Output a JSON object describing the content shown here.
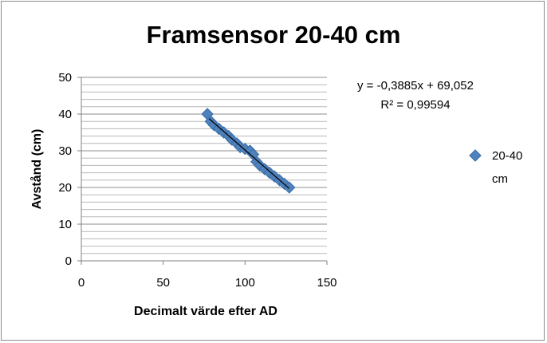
{
  "chart_data": {
    "type": "scatter",
    "title": "Framsensor 20-40 cm",
    "xlabel": "Decimalt värde efter AD",
    "ylabel": "Avstånd (cm)",
    "xlim": [
      0,
      150
    ],
    "ylim": [
      0,
      50
    ],
    "x_ticks": [
      "0",
      "50",
      "100",
      "150"
    ],
    "y_ticks": [
      "0",
      "10",
      "20",
      "30",
      "40",
      "50"
    ],
    "grid": "horizontal major and minor",
    "legend_position": "right",
    "series": [
      {
        "name": "20-40 cm",
        "color": "#4f81bd",
        "marker": "diamond",
        "points": [
          {
            "x": 77,
            "y": 40
          },
          {
            "x": 79,
            "y": 38
          },
          {
            "x": 81,
            "y": 37
          },
          {
            "x": 84,
            "y": 36
          },
          {
            "x": 87,
            "y": 35
          },
          {
            "x": 90,
            "y": 34
          },
          {
            "x": 92,
            "y": 33
          },
          {
            "x": 95,
            "y": 32
          },
          {
            "x": 97,
            "y": 31
          },
          {
            "x": 100,
            "y": 30.5
          },
          {
            "x": 103,
            "y": 30
          },
          {
            "x": 105,
            "y": 29
          },
          {
            "x": 107,
            "y": 27
          },
          {
            "x": 109,
            "y": 26
          },
          {
            "x": 112,
            "y": 25
          },
          {
            "x": 115,
            "y": 24
          },
          {
            "x": 118,
            "y": 23
          },
          {
            "x": 121,
            "y": 22
          },
          {
            "x": 124,
            "y": 21
          },
          {
            "x": 127,
            "y": 20
          }
        ]
      }
    ],
    "trendline": {
      "type": "linear",
      "slope": -0.3885,
      "intercept": 69.052,
      "x_range": [
        78,
        127
      ],
      "color": "#000000",
      "equation_label": "y = -0,3885x + 69,052",
      "r2_label": "R² = 0,99594"
    }
  }
}
